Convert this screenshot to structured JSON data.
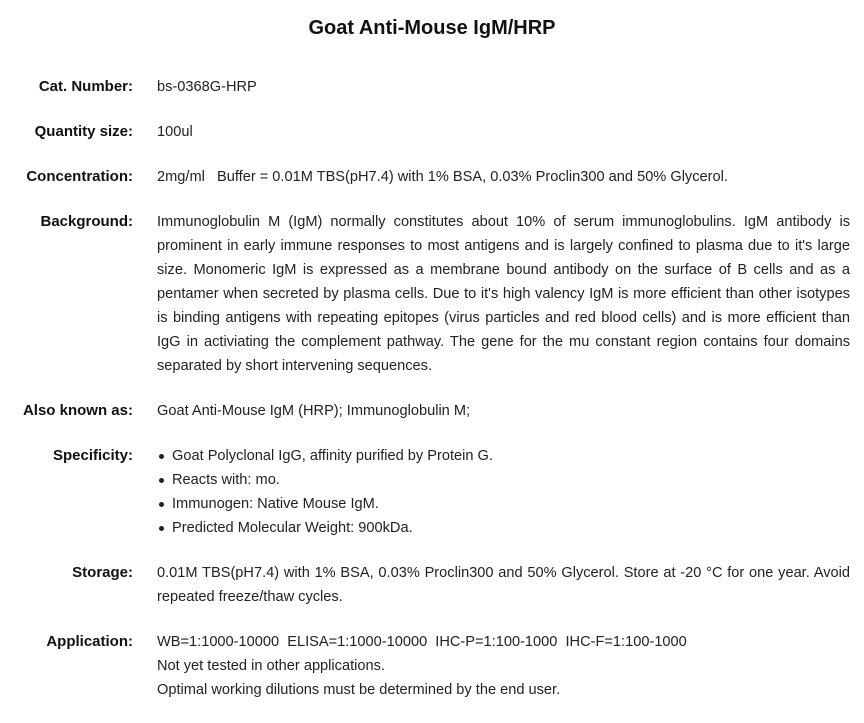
{
  "title": "Goat Anti-Mouse IgM/HRP",
  "fields": {
    "cat_number": {
      "label": "Cat. Number:",
      "value": "bs-0368G-HRP"
    },
    "quantity": {
      "label": "Quantity size:",
      "value": "100ul"
    },
    "concentration": {
      "label": "Concentration:",
      "value": "2mg/ml   Buffer = 0.01M TBS(pH7.4) with 1% BSA, 0.03% Proclin300 and 50% Glycerol."
    },
    "background": {
      "label": "Background:",
      "value": "Immunoglobulin M (IgM) normally constitutes about 10% of serum immunoglobulins. IgM antibody is prominent in early immune responses to most antigens and is largely confined to plasma due to it's large size. Monomeric IgM is expressed as a membrane bound antibody on the surface of B cells and as a pentamer when secreted by plasma cells. Due to it's high valency IgM is more efficient than other isotypes is binding antigens with repeating epitopes (virus particles and red blood cells) and is more efficient than IgG in activiating the complement pathway. The gene for the mu constant region contains four domains separated by short intervening sequences."
    },
    "aka": {
      "label": "Also known as:",
      "value": "Goat Anti-Mouse IgM (HRP); Immunoglobulin M;"
    },
    "specificity": {
      "label": "Specificity:",
      "items": [
        "Goat Polyclonal IgG, affinity purified by Protein G.",
        "Reacts with: mo.",
        "Immunogen: Native Mouse IgM.",
        "Predicted Molecular Weight: 900kDa."
      ]
    },
    "storage": {
      "label": "Storage:",
      "value": "0.01M TBS(pH7.4) with 1% BSA, 0.03% Proclin300 and 50% Glycerol. Store at -20 °C for one year. Avoid repeated freeze/thaw cycles."
    },
    "application": {
      "label": "Application:",
      "lines": [
        "WB=1:1000-10000  ELISA=1:1000-10000  IHC-P=1:100-1000  IHC-F=1:100-1000",
        "Not yet tested in other applications.",
        "Optimal working dilutions must be determined by the end user."
      ]
    }
  }
}
